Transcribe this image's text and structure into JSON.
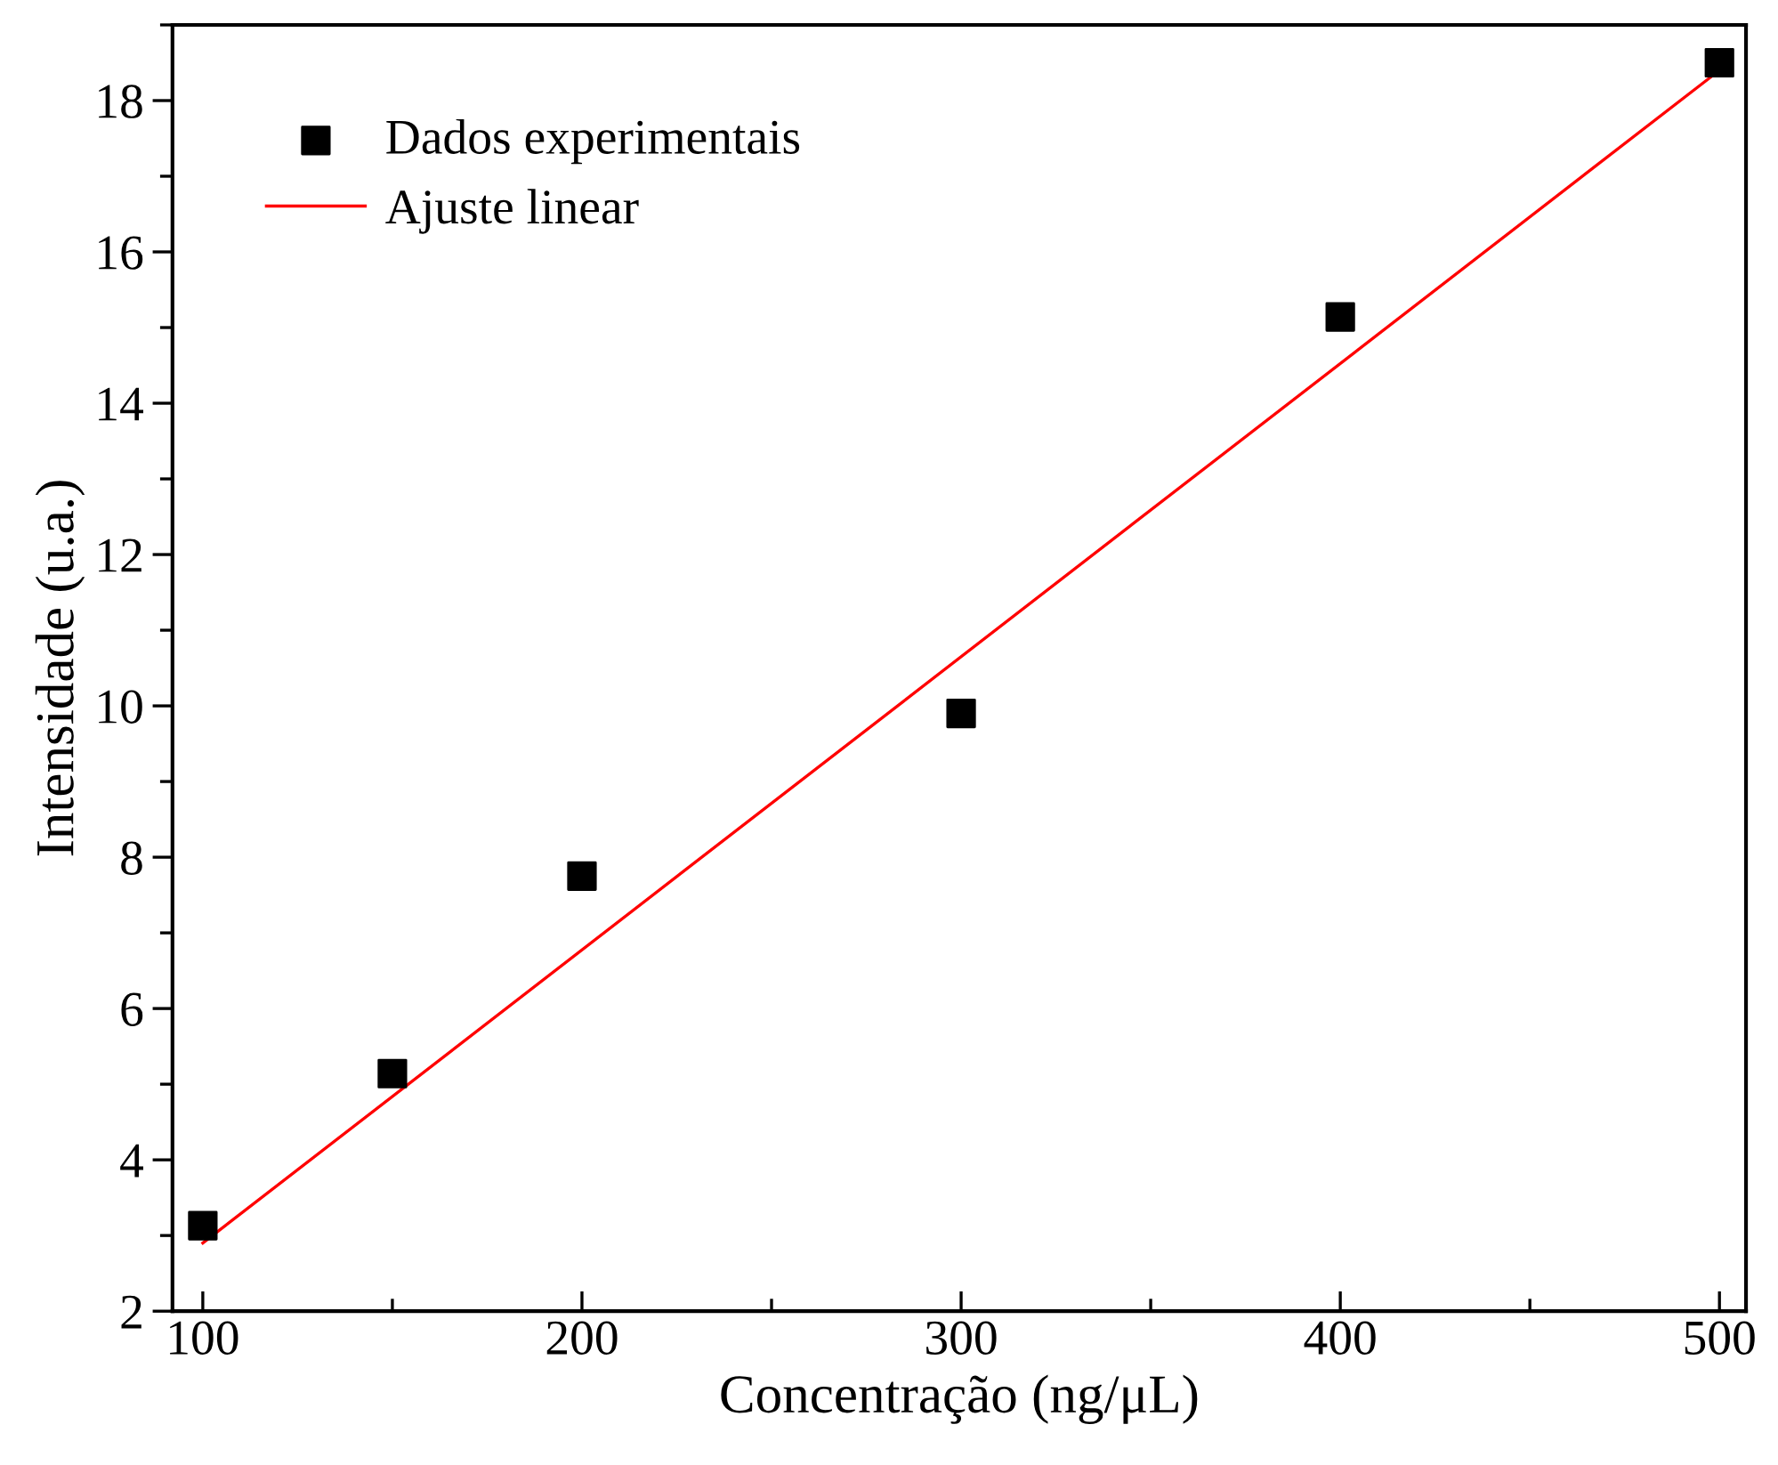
{
  "chart_data": {
    "type": "scatter",
    "xlabel": "Concentração (ng/μL)",
    "ylabel": "Intensidade (u.a.)",
    "xlim": [
      92,
      507
    ],
    "ylim": [
      2,
      19
    ],
    "xticks": [
      100,
      200,
      300,
      400,
      500
    ],
    "yticks": [
      2,
      4,
      6,
      8,
      10,
      12,
      14,
      16,
      18
    ],
    "grid": false,
    "legend": "top left",
    "series": [
      {
        "name": "Dados experimentais",
        "color": "#000000",
        "marker": "square",
        "x": [
          100,
          150,
          200,
          300,
          400,
          500
        ],
        "values": [
          3.13,
          5.14,
          7.75,
          9.9,
          15.14,
          18.5
        ]
      },
      {
        "name": "Ajuste linear",
        "type": "line",
        "color": "#ff0000",
        "line_style": "solid",
        "x": [
          100,
          500
        ],
        "values": [
          2.9,
          18.4
        ]
      }
    ]
  }
}
